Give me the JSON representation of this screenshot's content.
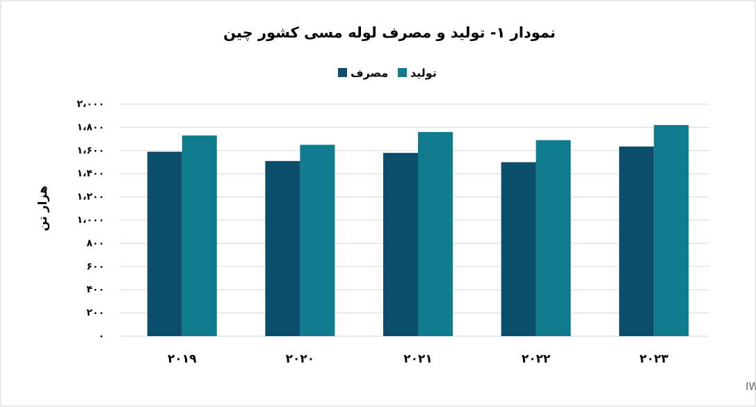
{
  "chart_data": {
    "type": "bar",
    "title": "نمودار ۱- تولید و مصرف لوله مسی کشور چین",
    "y_label": "هزار تن",
    "source": "گزارشات رسمی سایت IWCQ",
    "categories": [
      "۲۰۱۹",
      "۲۰۲۰",
      "۲۰۲۱",
      "۲۰۲۲",
      "۲۰۲۳"
    ],
    "series": [
      {
        "name": "مصرف",
        "color": "#0b4d6b",
        "values": [
          1590,
          1510,
          1580,
          1500,
          1635
        ]
      },
      {
        "name": "تولید",
        "color": "#0e7c8c",
        "values": [
          1730,
          1650,
          1760,
          1690,
          1820
        ]
      }
    ],
    "ylim": [
      0,
      2000
    ],
    "yticks": [
      {
        "value": 0,
        "label": "۰"
      },
      {
        "value": 200,
        "label": "۲۰۰"
      },
      {
        "value": 400,
        "label": "۴۰۰"
      },
      {
        "value": 600,
        "label": "۶۰۰"
      },
      {
        "value": 800,
        "label": "۸۰۰"
      },
      {
        "value": 1000,
        "label": "۱،۰۰۰"
      },
      {
        "value": 1200,
        "label": "۱،۲۰۰"
      },
      {
        "value": 1400,
        "label": "۱،۴۰۰"
      },
      {
        "value": 1600,
        "label": "۱،۶۰۰"
      },
      {
        "value": 1800,
        "label": "۱،۸۰۰"
      },
      {
        "value": 2000,
        "label": "۲،۰۰۰"
      }
    ],
    "grid": true
  }
}
